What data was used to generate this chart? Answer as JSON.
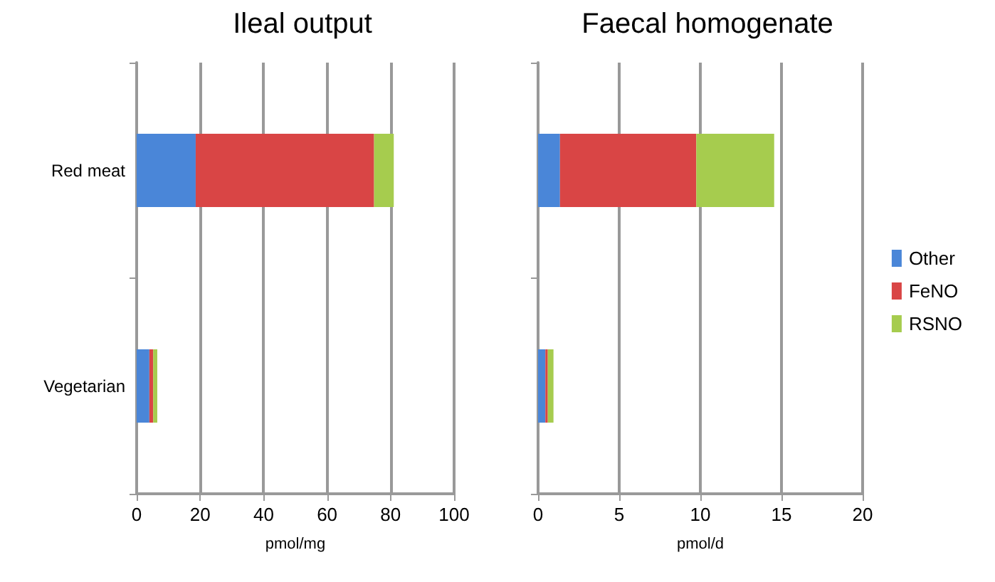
{
  "chart_data": [
    {
      "type": "bar",
      "orientation": "horizontal",
      "stacked": true,
      "title": "Ileal output",
      "xlabel": "pmol/mg",
      "categories": [
        "Red meat",
        "Vegetarian"
      ],
      "series": [
        {
          "color": "#4a86d8",
          "values": [
            18.6,
            4.0
          ]
        },
        {
          "color": "#d94545",
          "values": [
            56.2,
            1.2
          ]
        },
        {
          "color": "#a6cc4e",
          "values": [
            6.2,
            1.3
          ]
        }
      ],
      "xlim": [
        0,
        100
      ],
      "xticks": [
        0,
        20,
        40,
        60,
        80,
        100
      ],
      "grid": "x",
      "legend": false
    },
    {
      "type": "bar",
      "orientation": "horizontal",
      "stacked": true,
      "title": "Faecal homogenate",
      "xlabel": "pmol/d",
      "categories": [
        null,
        null
      ],
      "series": [
        {
          "name": "Other",
          "color": "#4a86d8",
          "values": [
            1.35,
            0.45
          ]
        },
        {
          "name": "FeNO",
          "color": "#d94545",
          "values": [
            8.4,
            0.15
          ]
        },
        {
          "name": "RSNO",
          "color": "#a6cc4e",
          "values": [
            4.8,
            0.35
          ]
        }
      ],
      "xlim": [
        0,
        20
      ],
      "xticks": [
        0,
        5,
        10,
        15,
        20
      ],
      "grid": "x",
      "legend": "right"
    }
  ]
}
